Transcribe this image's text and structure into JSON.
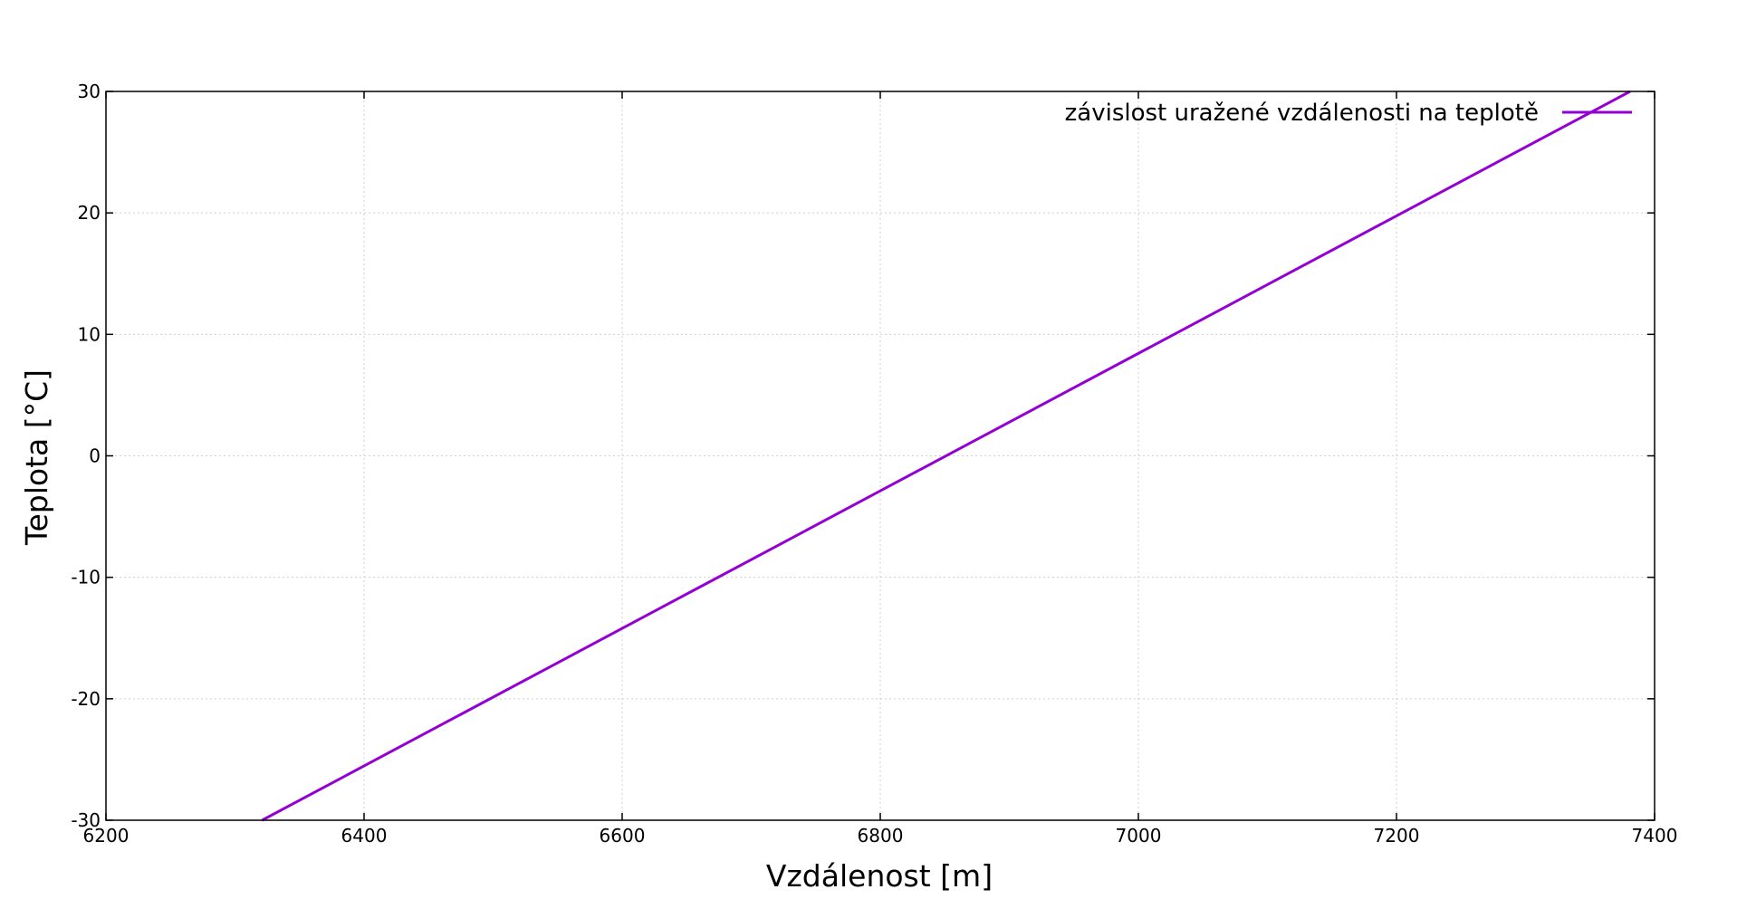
{
  "chart_data": {
    "type": "line",
    "title": "",
    "xlabel": "Vzdálenost [m]",
    "ylabel": "Teplota [°C]",
    "xlim": [
      6200,
      7400
    ],
    "ylim": [
      -30,
      30
    ],
    "xticks": [
      "6200",
      "6400",
      "6600",
      "6800",
      "7000",
      "7200",
      "7400"
    ],
    "yticks": [
      "30",
      "20",
      "10",
      "0",
      "-10",
      "-20",
      "-30"
    ],
    "grid": true,
    "legend_position": "top-right",
    "series": [
      {
        "name": "závislost uražené vzdálenosti na teplotě",
        "color": "#9400d3",
        "x": [
          6321,
          7381
        ],
        "y": [
          -30,
          30
        ]
      }
    ]
  }
}
